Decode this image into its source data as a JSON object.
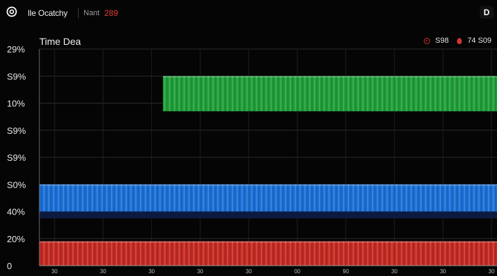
{
  "header": {
    "app_title": "Ile Ocatchy",
    "user_label": "Nant",
    "user_count": "289",
    "menu_label": "D"
  },
  "status": {
    "value_a": "S98",
    "value_b": "74 S09"
  },
  "colors": {
    "background": "#050505",
    "green_band": "#1f9e38",
    "blue_band": "#1a6fd6",
    "red_band": "#c42a22",
    "accent_red": "#d0372e"
  },
  "icons": {
    "logo": "target-icon",
    "status_a": "record-icon",
    "status_b": "drop-icon"
  },
  "chart_data": {
    "type": "bar",
    "title": "Time Dea",
    "y_tick_labels": [
      "29%",
      "S9%",
      "10%",
      "S9%",
      "S9%",
      "S0%",
      "40%",
      "20%",
      "0"
    ],
    "x_tick_labels": [
      "30",
      "30",
      "30",
      "30",
      "30",
      "00",
      "90",
      "30",
      "30",
      "30"
    ],
    "bands": [
      {
        "name": "green",
        "start_fraction": 0.27,
        "end_fraction": 1.0,
        "from_tick": 1,
        "to_tick": 2.3,
        "color": "#1f9e38"
      },
      {
        "name": "blue",
        "start_fraction": 0.0,
        "end_fraction": 1.0,
        "from_tick": 5,
        "to_tick": 6,
        "color": "#1a6fd6"
      },
      {
        "name": "red",
        "start_fraction": 0.0,
        "end_fraction": 1.0,
        "from_tick": 7.1,
        "to_tick": 8,
        "color": "#c42a22"
      }
    ],
    "grid": true
  }
}
